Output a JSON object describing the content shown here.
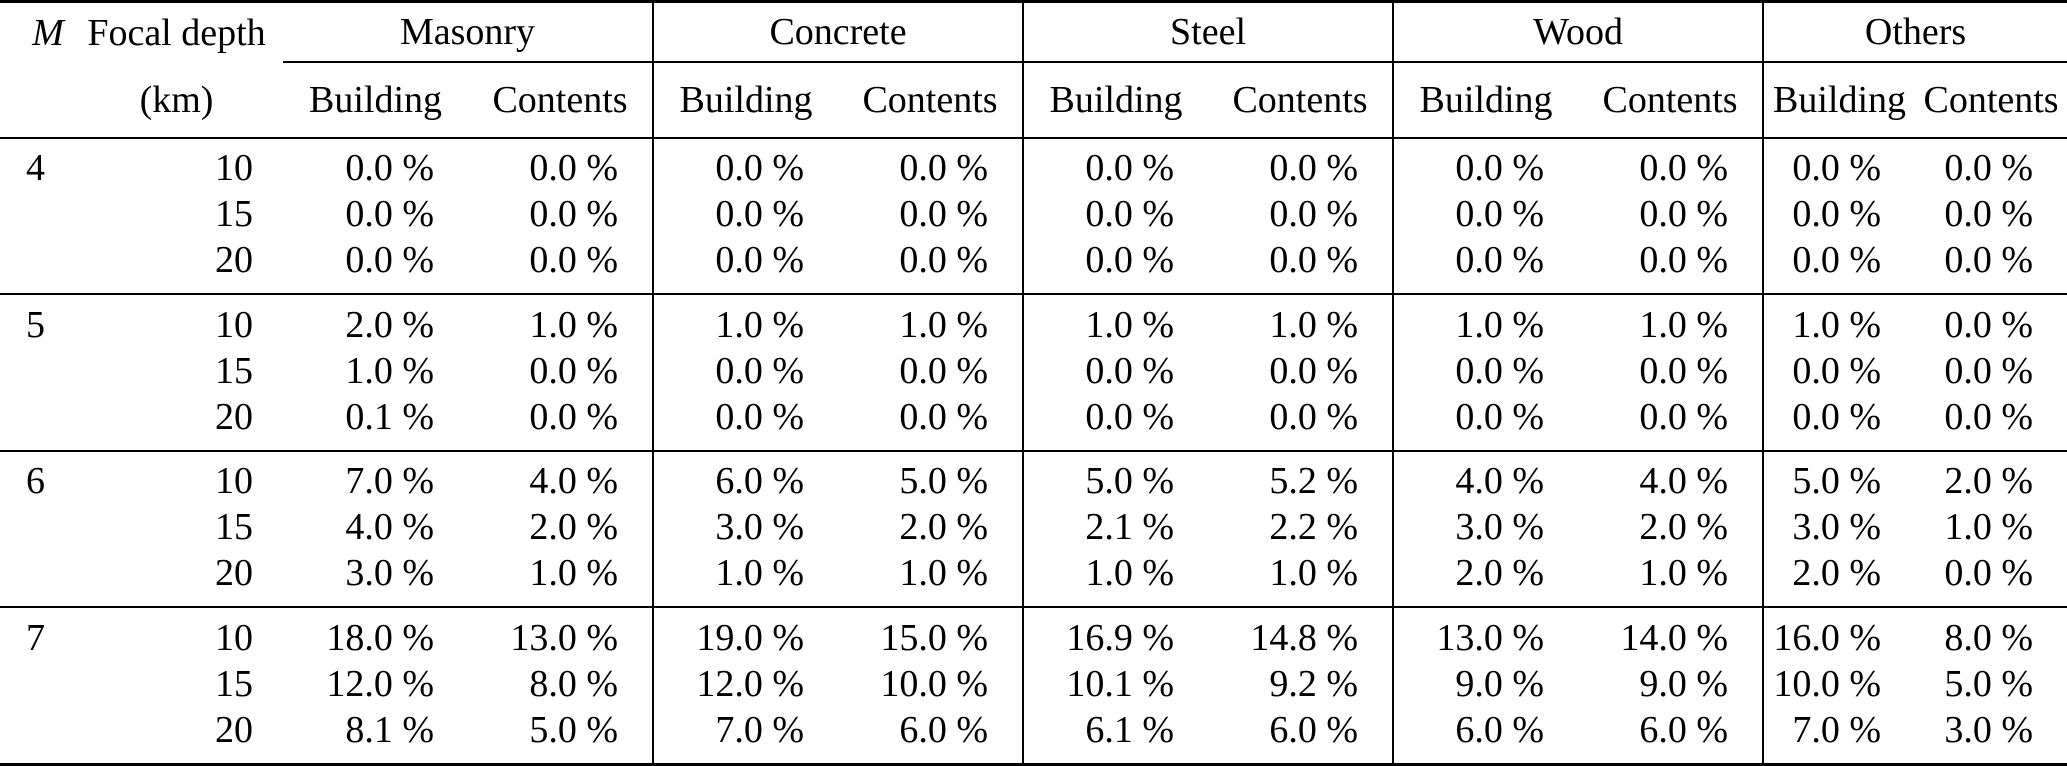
{
  "page": {
    "background_color": "#ffffff",
    "text_color": "#000000"
  },
  "table": {
    "headers": {
      "m": "M",
      "focal": "Focal depth",
      "focal_unit": "(km)",
      "groups": [
        "Masonry",
        "Concrete",
        "Steel",
        "Wood",
        "Others"
      ],
      "sub_building": "Building",
      "sub_contents": "Contents"
    },
    "blocks": [
      {
        "m": "4",
        "rows": [
          {
            "depth": "10",
            "values": [
              "0.0 %",
              "0.0 %",
              "0.0 %",
              "0.0 %",
              "0.0 %",
              "0.0 %",
              "0.0 %",
              "0.0 %",
              "0.0 %",
              "0.0 %"
            ]
          },
          {
            "depth": "15",
            "values": [
              "0.0 %",
              "0.0 %",
              "0.0 %",
              "0.0 %",
              "0.0 %",
              "0.0 %",
              "0.0 %",
              "0.0 %",
              "0.0 %",
              "0.0 %"
            ]
          },
          {
            "depth": "20",
            "values": [
              "0.0 %",
              "0.0 %",
              "0.0 %",
              "0.0 %",
              "0.0 %",
              "0.0 %",
              "0.0 %",
              "0.0 %",
              "0.0 %",
              "0.0 %"
            ]
          }
        ]
      },
      {
        "m": "5",
        "rows": [
          {
            "depth": "10",
            "values": [
              "2.0 %",
              "1.0 %",
              "1.0 %",
              "1.0 %",
              "1.0 %",
              "1.0 %",
              "1.0 %",
              "1.0 %",
              "1.0 %",
              "0.0 %"
            ]
          },
          {
            "depth": "15",
            "values": [
              "1.0 %",
              "0.0 %",
              "0.0 %",
              "0.0 %",
              "0.0 %",
              "0.0 %",
              "0.0 %",
              "0.0 %",
              "0.0 %",
              "0.0 %"
            ]
          },
          {
            "depth": "20",
            "values": [
              "0.1 %",
              "0.0 %",
              "0.0 %",
              "0.0 %",
              "0.0 %",
              "0.0 %",
              "0.0 %",
              "0.0 %",
              "0.0 %",
              "0.0 %"
            ]
          }
        ]
      },
      {
        "m": "6",
        "rows": [
          {
            "depth": "10",
            "values": [
              "7.0 %",
              "4.0 %",
              "6.0 %",
              "5.0 %",
              "5.0 %",
              "5.2 %",
              "4.0 %",
              "4.0 %",
              "5.0 %",
              "2.0 %"
            ]
          },
          {
            "depth": "15",
            "values": [
              "4.0 %",
              "2.0 %",
              "3.0 %",
              "2.0 %",
              "2.1 %",
              "2.2 %",
              "3.0 %",
              "2.0 %",
              "3.0 %",
              "1.0 %"
            ]
          },
          {
            "depth": "20",
            "values": [
              "3.0 %",
              "1.0 %",
              "1.0 %",
              "1.0 %",
              "1.0 %",
              "1.0 %",
              "2.0 %",
              "1.0 %",
              "2.0 %",
              "0.0 %"
            ]
          }
        ]
      },
      {
        "m": "7",
        "rows": [
          {
            "depth": "10",
            "values": [
              "18.0 %",
              "13.0 %",
              "19.0 %",
              "15.0 %",
              "16.9 %",
              "14.8 %",
              "13.0 %",
              "14.0 %",
              "16.0 %",
              "8.0 %"
            ]
          },
          {
            "depth": "15",
            "values": [
              "12.0 %",
              "8.0 %",
              "12.0 %",
              "10.0 %",
              "10.1 %",
              "9.2 %",
              "9.0 %",
              "9.0 %",
              "10.0 %",
              "5.0 %"
            ]
          },
          {
            "depth": "20",
            "values": [
              "8.1 %",
              "5.0 %",
              "7.0 %",
              "6.0 %",
              "6.1 %",
              "6.0 %",
              "6.0 %",
              "6.0 %",
              "7.0 %",
              "3.0 %"
            ]
          }
        ]
      }
    ]
  }
}
